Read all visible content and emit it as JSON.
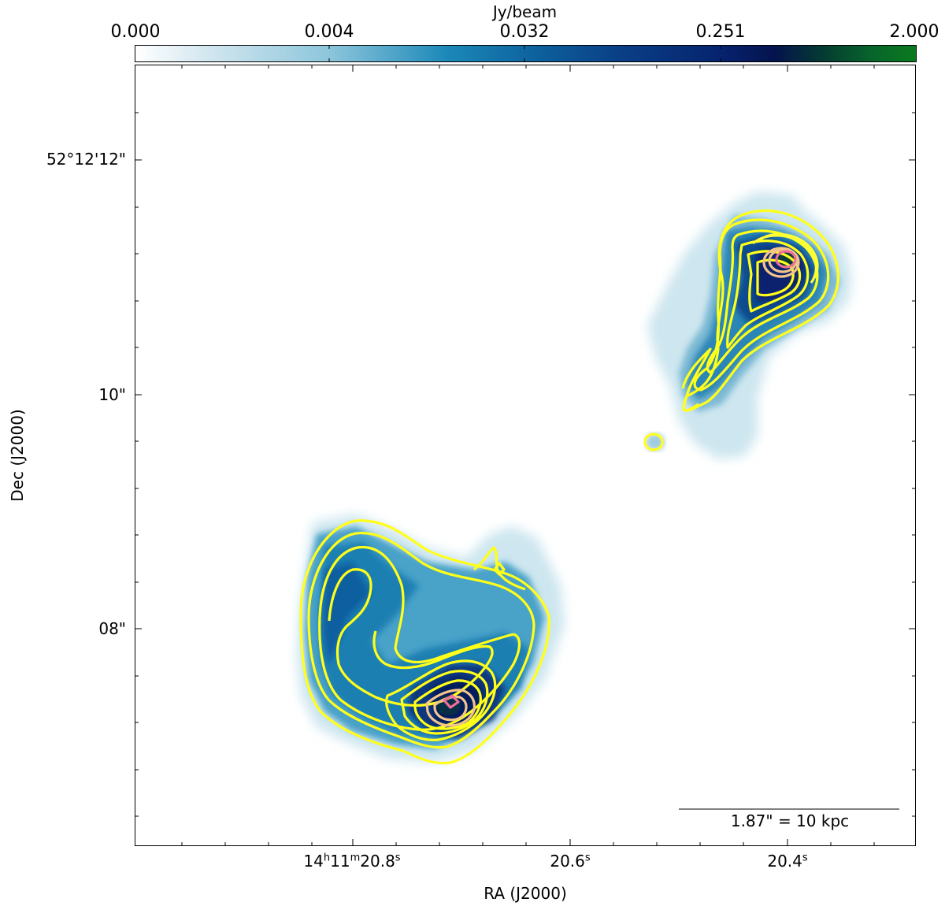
{
  "colorbar": {
    "label": "Jy/beam",
    "ticks": [
      "0.000",
      "0.004",
      "0.032",
      "0.251",
      "2.000"
    ],
    "colors": [
      "#ffffff",
      "#8cc5db",
      "#0d5f9c",
      "#05134d",
      "#0b7a1f"
    ]
  },
  "axes": {
    "x_label": "RA (J2000)",
    "y_label": "Dec (J2000)",
    "x_ticks": [
      {
        "main": "14",
        "h": "h",
        "m_val": "11",
        "m": "m",
        "s_val": "20.8",
        "s": "s"
      },
      {
        "main": "20.6",
        "s": "s"
      },
      {
        "main": "20.4",
        "s": "s"
      }
    ],
    "y_ticks": [
      "52°12'12\"",
      "10\"",
      "08\""
    ]
  },
  "scalebar": {
    "label": "1.87\" = 10 kpc"
  },
  "contour_colors": {
    "outer": "#ffff1a",
    "middle": "#f4c48a",
    "inner": "#ee6f9a"
  }
}
